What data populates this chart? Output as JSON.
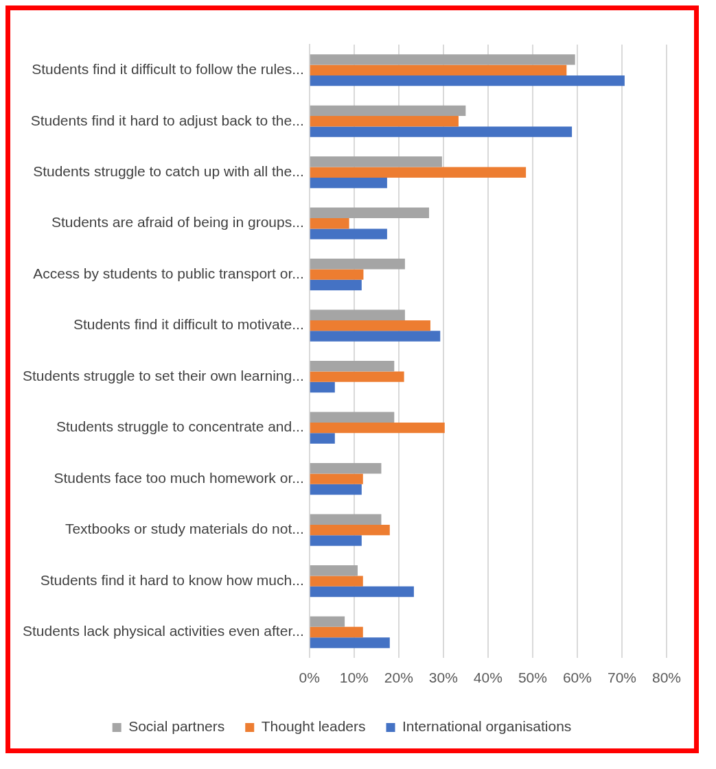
{
  "chart_data": {
    "type": "bar",
    "orientation": "horizontal",
    "categories": [
      "Students find it difficult to follow the rules...",
      "Students find it hard to adjust back to the...",
      "Students struggle to catch up with all the...",
      "Students are afraid of being in groups...",
      "Access by students to public transport or...",
      "Students find it difficult to motivate...",
      "Students struggle to set their own learning...",
      "Students struggle to concentrate and...",
      "Students face too much homework or...",
      "Textbooks or study materials do not...",
      "Students find it hard to know how much...",
      "Students lack physical activities even after..."
    ],
    "series": [
      {
        "name": "Social partners",
        "color": "#a5a5a5",
        "values": [
          59.5,
          35,
          29.7,
          26.8,
          21.4,
          21.4,
          19,
          19,
          16.1,
          16.1,
          10.8,
          7.9
        ]
      },
      {
        "name": "Thought leaders",
        "color": "#ed7d31",
        "values": [
          57.6,
          33.4,
          48.5,
          8.9,
          12.1,
          27.1,
          21.2,
          30.3,
          12,
          18,
          12,
          12
        ]
      },
      {
        "name": "International organisations",
        "color": "#4472c4",
        "values": [
          70.6,
          58.8,
          17.4,
          17.4,
          11.7,
          29.3,
          5.7,
          5.7,
          11.7,
          11.7,
          23.4,
          18
        ]
      }
    ],
    "xlim": [
      0,
      80
    ],
    "xticks": [
      {
        "value": 0,
        "label": "0%"
      },
      {
        "value": 10,
        "label": "10%"
      },
      {
        "value": 20,
        "label": "20%"
      },
      {
        "value": 30,
        "label": "30%"
      },
      {
        "value": 40,
        "label": "40%"
      },
      {
        "value": 50,
        "label": "50%"
      },
      {
        "value": 60,
        "label": "60%"
      },
      {
        "value": 70,
        "label": "70%"
      },
      {
        "value": 80,
        "label": "80%"
      }
    ],
    "grid": "x",
    "legend": "bottom"
  }
}
